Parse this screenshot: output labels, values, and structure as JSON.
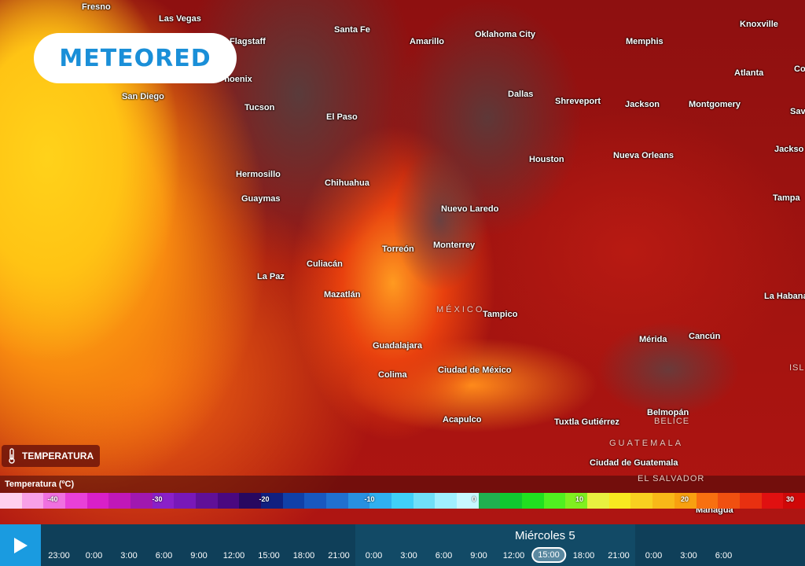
{
  "brand": {
    "logo_text": "METEORED",
    "accent": "#1a8fd8"
  },
  "layer": {
    "label": "TEMPERATURA",
    "icon": "thermometer-icon"
  },
  "cities": [
    "Fresno",
    "Las Vegas",
    "Flagstaff",
    "Phoenix",
    "San Diego",
    "Tucson",
    "Santa Fe",
    "Amarillo",
    "Oklahoma City",
    "Memphis",
    "Knoxville",
    "Atlanta",
    "Dallas",
    "Shreveport",
    "Jackson",
    "Montgomery",
    "El Paso",
    "Houston",
    "Nueva Orleans",
    "Hermosillo",
    "Chihuahua",
    "Guaymas",
    "Nuevo Laredo",
    "Tampa",
    "Monterrey",
    "Torreón",
    "Culiacán",
    "La Paz",
    "Mazatlán",
    "Tampico",
    "Mérida",
    "Cancún",
    "La Habana",
    "Guadalajara",
    "Colima",
    "Ciudad de México",
    "Acapulco",
    "Tuxtla Gutiérrez",
    "Belmopán",
    "Ciudad de Guatemala",
    "Managua",
    "Jackso",
    "Co",
    "Sav"
  ],
  "countries": [
    "MÉXICO",
    "BELICE",
    "GUATEMALA",
    "EL SALVADOR",
    "ISL"
  ],
  "legend": {
    "title": "Temperatura (ºC)",
    "ticks": [
      "-40",
      "-30",
      "-20",
      "-10",
      "0",
      "10",
      "20",
      "30"
    ],
    "colors": [
      "#ffd0ee",
      "#f8a0e8",
      "#f070e0",
      "#e840d8",
      "#d820c8",
      "#c018b8",
      "#a018b0",
      "#8a20c8",
      "#7818b8",
      "#601098",
      "#4a0880",
      "#280860",
      "#102080",
      "#1040a8",
      "#1858c0",
      "#2070d0",
      "#2890e0",
      "#30b0f0",
      "#40d0f8",
      "#70e0f8",
      "#a0f0ff",
      "#c8f8ff",
      "#20b050",
      "#10c830",
      "#20e020",
      "#50f020",
      "#80f020",
      "#e8f040",
      "#f8e820",
      "#f8d020",
      "#f8b818",
      "#f8a010",
      "#f87010",
      "#f05010",
      "#e83010",
      "#e01010",
      "#d00808"
    ]
  },
  "timeline": {
    "play_icon": "play-icon",
    "day_label": "Miércoles 5",
    "times": [
      "23:00",
      "0:00",
      "3:00",
      "6:00",
      "9:00",
      "12:00",
      "15:00",
      "18:00",
      "21:00",
      "0:00",
      "3:00",
      "6:00",
      "9:00",
      "12:00",
      "15:00",
      "18:00",
      "21:00",
      "0:00",
      "3:00",
      "6:00"
    ],
    "selected_index": 14
  }
}
